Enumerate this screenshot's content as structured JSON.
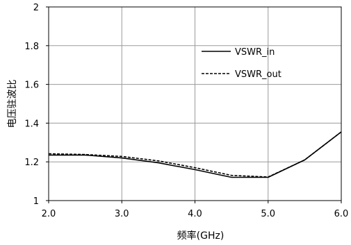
{
  "chart_data": {
    "type": "line",
    "xlabel": "频率(GHz)",
    "ylabel": "电压驻波比",
    "xlim": [
      2.0,
      6.0
    ],
    "ylim": [
      1,
      2
    ],
    "xticks": [
      "2.0",
      "3.0",
      "4.0",
      "5.0",
      "6.0"
    ],
    "yticks": [
      "1",
      "1.2",
      "1.4",
      "1.6",
      "1.8",
      "2"
    ],
    "grid": true,
    "legend_position": "top-right",
    "series": [
      {
        "name": "VSWR_in",
        "style": "solid",
        "color": "#000000",
        "x": [
          2.0,
          2.5,
          3.0,
          3.5,
          4.0,
          4.5,
          5.0,
          5.5,
          6.0
        ],
        "y": [
          1.235,
          1.235,
          1.22,
          1.195,
          1.16,
          1.12,
          1.12,
          1.21,
          1.355
        ]
      },
      {
        "name": "VSWR_out",
        "style": "dashed",
        "color": "#000000",
        "x": [
          2.0,
          2.5,
          3.0,
          3.5,
          4.0,
          4.5,
          5.0,
          5.5,
          6.0
        ],
        "y": [
          1.242,
          1.238,
          1.228,
          1.205,
          1.17,
          1.13,
          1.122,
          1.21,
          1.355
        ]
      }
    ]
  }
}
